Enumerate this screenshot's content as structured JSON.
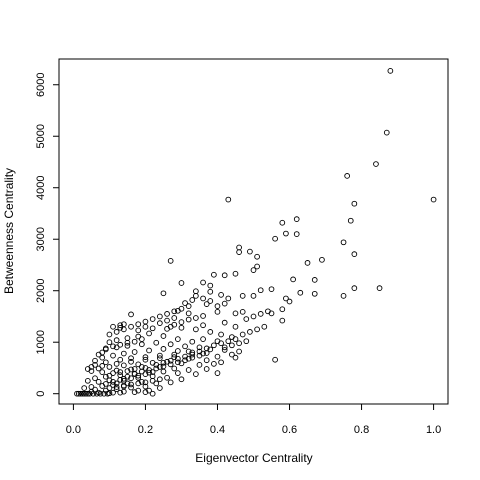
{
  "chart_data": {
    "type": "scatter",
    "xlabel": "Eigenvector Centrality",
    "ylabel": "Betweenness Centrality",
    "xlim": [
      -0.04,
      1.04
    ],
    "ylim": [
      -200,
      6500
    ],
    "xticks": [
      0.0,
      0.2,
      0.4,
      0.6,
      0.8,
      1.0
    ],
    "xtick_labels": [
      "0.0",
      "0.2",
      "0.4",
      "0.6",
      "0.8",
      "1.0"
    ],
    "yticks": [
      0,
      1000,
      2000,
      3000,
      4000,
      5000,
      6000
    ],
    "ytick_labels": [
      "0",
      "1000",
      "2000",
      "3000",
      "4000",
      "5000",
      "6000"
    ],
    "grid": false,
    "marker": "open-circle",
    "series": [
      {
        "points": [
          [
            0.88,
            6270
          ],
          [
            0.87,
            5070
          ],
          [
            0.84,
            4460
          ],
          [
            0.76,
            4230
          ],
          [
            1.0,
            3770
          ],
          [
            0.43,
            3770
          ],
          [
            0.78,
            3690
          ],
          [
            0.62,
            3390
          ],
          [
            0.77,
            3360
          ],
          [
            0.58,
            3320
          ],
          [
            0.59,
            3110
          ],
          [
            0.62,
            3100
          ],
          [
            0.56,
            3010
          ],
          [
            0.75,
            2940
          ],
          [
            0.46,
            2840
          ],
          [
            0.46,
            2750
          ],
          [
            0.49,
            2760
          ],
          [
            0.51,
            2660
          ],
          [
            0.69,
            2600
          ],
          [
            0.78,
            2710
          ],
          [
            0.27,
            2580
          ],
          [
            0.65,
            2540
          ],
          [
            0.51,
            2470
          ],
          [
            0.5,
            2400
          ],
          [
            0.39,
            2310
          ],
          [
            0.45,
            2330
          ],
          [
            0.42,
            2300
          ],
          [
            0.61,
            2220
          ],
          [
            0.67,
            2210
          ],
          [
            0.36,
            2160
          ],
          [
            0.3,
            2150
          ],
          [
            0.38,
            2100
          ],
          [
            0.85,
            2050
          ],
          [
            0.78,
            2050
          ],
          [
            0.55,
            2030
          ],
          [
            0.52,
            2010
          ],
          [
            0.63,
            1960
          ],
          [
            0.67,
            1940
          ],
          [
            0.75,
            1900
          ],
          [
            0.34,
            1990
          ],
          [
            0.25,
            1950
          ],
          [
            0.38,
            1980
          ],
          [
            0.41,
            1920
          ],
          [
            0.47,
            1900
          ],
          [
            0.43,
            1850
          ],
          [
            0.5,
            1900
          ],
          [
            0.59,
            1850
          ],
          [
            0.6,
            1790
          ],
          [
            0.33,
            1820
          ],
          [
            0.31,
            1760
          ],
          [
            0.37,
            1740
          ],
          [
            0.55,
            1560
          ],
          [
            0.4,
            1590
          ],
          [
            0.45,
            1560
          ],
          [
            0.47,
            1590
          ],
          [
            0.58,
            1640
          ],
          [
            0.58,
            1420
          ],
          [
            0.48,
            1450
          ],
          [
            0.45,
            1300
          ],
          [
            0.42,
            1380
          ],
          [
            0.36,
            1510
          ],
          [
            0.32,
            1560
          ],
          [
            0.29,
            1610
          ],
          [
            0.28,
            1470
          ],
          [
            0.26,
            1420
          ],
          [
            0.24,
            1370
          ],
          [
            0.16,
            1540
          ],
          [
            0.13,
            1280
          ],
          [
            0.14,
            1350
          ],
          [
            0.18,
            1230
          ],
          [
            0.2,
            1300
          ],
          [
            0.22,
            1270
          ],
          [
            0.27,
            1300
          ],
          [
            0.3,
            1280
          ],
          [
            0.34,
            1250
          ],
          [
            0.38,
            1200
          ],
          [
            0.41,
            1150
          ],
          [
            0.44,
            1100
          ],
          [
            0.4,
            1020
          ],
          [
            0.36,
            1060
          ],
          [
            0.33,
            1010
          ],
          [
            0.29,
            1060
          ],
          [
            0.25,
            1120
          ],
          [
            0.21,
            1170
          ],
          [
            0.18,
            1110
          ],
          [
            0.15,
            1080
          ],
          [
            0.12,
            1040
          ],
          [
            0.1,
            1000
          ],
          [
            0.09,
            880
          ],
          [
            0.12,
            900
          ],
          [
            0.15,
            930
          ],
          [
            0.19,
            960
          ],
          [
            0.23,
            990
          ],
          [
            0.27,
            960
          ],
          [
            0.31,
            920
          ],
          [
            0.35,
            900
          ],
          [
            0.38,
            860
          ],
          [
            0.42,
            850
          ],
          [
            0.46,
            820
          ],
          [
            0.44,
            760
          ],
          [
            0.4,
            720
          ],
          [
            0.36,
            780
          ],
          [
            0.33,
            800
          ],
          [
            0.29,
            830
          ],
          [
            0.25,
            870
          ],
          [
            0.21,
            840
          ],
          [
            0.17,
            810
          ],
          [
            0.14,
            780
          ],
          [
            0.11,
            740
          ],
          [
            0.08,
            700
          ],
          [
            0.06,
            640
          ],
          [
            0.09,
            610
          ],
          [
            0.13,
            660
          ],
          [
            0.16,
            690
          ],
          [
            0.2,
            710
          ],
          [
            0.24,
            740
          ],
          [
            0.28,
            710
          ],
          [
            0.32,
            680
          ],
          [
            0.37,
            650
          ],
          [
            0.41,
            610
          ],
          [
            0.45,
            700
          ],
          [
            0.56,
            660
          ],
          [
            0.39,
            580
          ],
          [
            0.35,
            560
          ],
          [
            0.3,
            590
          ],
          [
            0.26,
            620
          ],
          [
            0.22,
            600
          ],
          [
            0.18,
            570
          ],
          [
            0.14,
            550
          ],
          [
            0.1,
            520
          ],
          [
            0.07,
            490
          ],
          [
            0.05,
            440
          ],
          [
            0.08,
            420
          ],
          [
            0.12,
            450
          ],
          [
            0.16,
            470
          ],
          [
            0.2,
            500
          ],
          [
            0.24,
            520
          ],
          [
            0.28,
            490
          ],
          [
            0.32,
            460
          ],
          [
            0.37,
            480
          ],
          [
            0.4,
            400
          ],
          [
            0.34,
            380
          ],
          [
            0.29,
            400
          ],
          [
            0.25,
            430
          ],
          [
            0.21,
            410
          ],
          [
            0.17,
            380
          ],
          [
            0.13,
            360
          ],
          [
            0.09,
            330
          ],
          [
            0.06,
            300
          ],
          [
            0.04,
            250
          ],
          [
            0.07,
            230
          ],
          [
            0.1,
            260
          ],
          [
            0.14,
            290
          ],
          [
            0.18,
            310
          ],
          [
            0.22,
            340
          ],
          [
            0.26,
            310
          ],
          [
            0.3,
            280
          ],
          [
            0.27,
            220
          ],
          [
            0.23,
            200
          ],
          [
            0.19,
            230
          ],
          [
            0.15,
            200
          ],
          [
            0.11,
            170
          ],
          [
            0.08,
            150
          ],
          [
            0.05,
            130
          ],
          [
            0.03,
            110
          ],
          [
            0.06,
            80
          ],
          [
            0.09,
            60
          ],
          [
            0.12,
            90
          ],
          [
            0.16,
            120
          ],
          [
            0.2,
            140
          ],
          [
            0.24,
            110
          ],
          [
            0.21,
            60
          ],
          [
            0.17,
            30
          ],
          [
            0.13,
            20
          ],
          [
            0.1,
            10
          ],
          [
            0.07,
            20
          ],
          [
            0.05,
            40
          ],
          [
            0.04,
            0
          ],
          [
            0.03,
            0
          ],
          [
            0.02,
            0
          ],
          [
            0.01,
            0
          ],
          [
            0.015,
            0
          ],
          [
            0.025,
            0
          ],
          [
            0.035,
            0
          ],
          [
            0.045,
            0
          ],
          [
            0.055,
            0
          ],
          [
            0.065,
            0
          ],
          [
            0.075,
            0
          ],
          [
            0.085,
            0
          ],
          [
            0.095,
            0
          ],
          [
            0.11,
            20
          ],
          [
            0.14,
            40
          ],
          [
            0.18,
            60
          ],
          [
            0.22,
            0
          ],
          [
            0.2,
            30
          ],
          [
            0.12,
            200
          ],
          [
            0.14,
            250
          ],
          [
            0.16,
            300
          ],
          [
            0.18,
            350
          ],
          [
            0.2,
            380
          ],
          [
            0.22,
            420
          ],
          [
            0.1,
            350
          ],
          [
            0.11,
            400
          ],
          [
            0.13,
            420
          ],
          [
            0.15,
            440
          ],
          [
            0.17,
            480
          ],
          [
            0.19,
            520
          ],
          [
            0.23,
            560
          ],
          [
            0.25,
            600
          ],
          [
            0.27,
            640
          ],
          [
            0.29,
            680
          ],
          [
            0.31,
            720
          ],
          [
            0.33,
            760
          ],
          [
            0.35,
            820
          ],
          [
            0.37,
            880
          ],
          [
            0.39,
            940
          ],
          [
            0.41,
            980
          ],
          [
            0.43,
            1020
          ],
          [
            0.45,
            1060
          ],
          [
            0.26,
            1260
          ],
          [
            0.28,
            1340
          ],
          [
            0.3,
            1390
          ],
          [
            0.32,
            1440
          ],
          [
            0.34,
            1470
          ],
          [
            0.36,
            1330
          ],
          [
            0.19,
            1060
          ],
          [
            0.17,
            1010
          ],
          [
            0.15,
            990
          ],
          [
            0.13,
            950
          ],
          [
            0.11,
            920
          ],
          [
            0.09,
            860
          ],
          [
            0.08,
            800
          ],
          [
            0.07,
            760
          ],
          [
            0.06,
            560
          ],
          [
            0.05,
            520
          ],
          [
            0.04,
            480
          ],
          [
            0.08,
            540
          ],
          [
            0.12,
            580
          ],
          [
            0.16,
            620
          ],
          [
            0.2,
            660
          ],
          [
            0.24,
            690
          ],
          [
            0.28,
            760
          ],
          [
            0.32,
            820
          ],
          [
            0.14,
            160
          ],
          [
            0.16,
            180
          ],
          [
            0.18,
            200
          ],
          [
            0.2,
            220
          ],
          [
            0.22,
            250
          ],
          [
            0.24,
            280
          ],
          [
            0.1,
            110
          ],
          [
            0.12,
            130
          ],
          [
            0.14,
            140
          ],
          [
            0.09,
            190
          ],
          [
            0.11,
            230
          ],
          [
            0.13,
            270
          ],
          [
            0.15,
            330
          ],
          [
            0.17,
            390
          ],
          [
            0.19,
            430
          ],
          [
            0.21,
            460
          ],
          [
            0.23,
            490
          ],
          [
            0.25,
            530
          ],
          [
            0.27,
            570
          ],
          [
            0.29,
            610
          ],
          [
            0.31,
            650
          ],
          [
            0.33,
            700
          ],
          [
            0.35,
            740
          ],
          [
            0.37,
            790
          ],
          [
            0.42,
            900
          ],
          [
            0.44,
            940
          ],
          [
            0.46,
            980
          ],
          [
            0.48,
            1020
          ],
          [
            0.47,
            1150
          ],
          [
            0.49,
            1200
          ],
          [
            0.51,
            1250
          ],
          [
            0.53,
            1300
          ],
          [
            0.5,
            1500
          ],
          [
            0.52,
            1550
          ],
          [
            0.54,
            1600
          ],
          [
            0.4,
            1700
          ],
          [
            0.42,
            1750
          ],
          [
            0.38,
            1800
          ],
          [
            0.36,
            1850
          ],
          [
            0.34,
            1900
          ],
          [
            0.32,
            1700
          ],
          [
            0.3,
            1650
          ],
          [
            0.28,
            1600
          ],
          [
            0.26,
            1550
          ],
          [
            0.24,
            1500
          ],
          [
            0.22,
            1450
          ],
          [
            0.2,
            1400
          ],
          [
            0.18,
            1350
          ],
          [
            0.16,
            1300
          ],
          [
            0.14,
            1250
          ],
          [
            0.12,
            1200
          ],
          [
            0.1,
            1150
          ],
          [
            0.11,
            1300
          ],
          [
            0.13,
            1330
          ]
        ]
      }
    ]
  }
}
